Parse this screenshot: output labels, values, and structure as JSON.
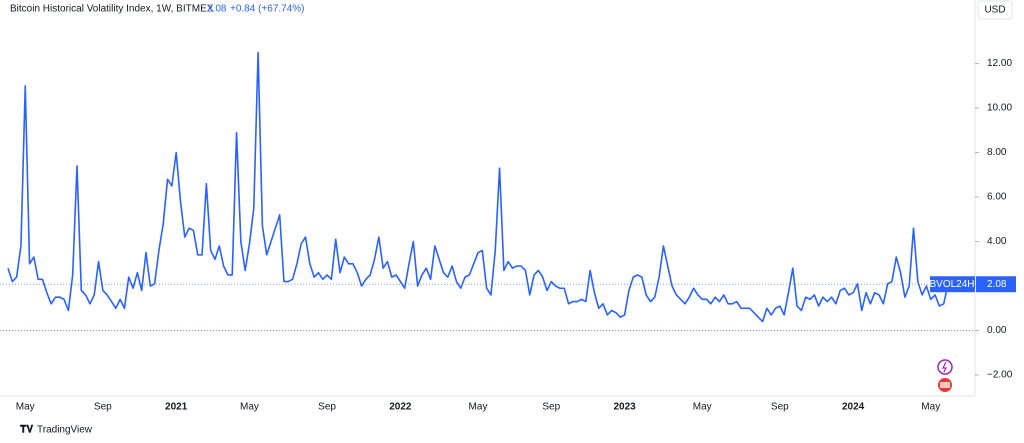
{
  "chart_data": {
    "type": "line",
    "title": "Bitcoin Historical Volatility Index, 1W, BITMEX",
    "change": "+0.84 (+67.74%)",
    "currency": "USD",
    "brand": "TradingView",
    "categories": [
      null,
      null,
      null,
      null,
      "May",
      null,
      null,
      null,
      null,
      null,
      null,
      null,
      null,
      null,
      null,
      null,
      null,
      null,
      null,
      null,
      null,
      null,
      "Sep",
      null,
      null,
      null,
      null,
      null,
      null,
      null,
      null,
      null,
      null,
      null,
      null,
      null,
      null,
      null,
      null,
      "2021",
      null,
      null,
      null,
      null,
      null,
      null,
      null,
      null,
      null,
      null,
      null,
      null,
      null,
      null,
      null,
      null,
      "May",
      null,
      null,
      null,
      null,
      null,
      null,
      null,
      null,
      null,
      null,
      null,
      null,
      null,
      null,
      null,
      null,
      null,
      "Sep",
      null,
      null,
      null,
      null,
      null,
      null,
      null,
      null,
      null,
      null,
      null,
      null,
      null,
      null,
      null,
      null,
      "2022",
      null,
      null,
      null,
      null,
      null,
      null,
      null,
      null,
      null,
      null,
      null,
      null,
      null,
      null,
      null,
      null,
      null,
      "May",
      null,
      null,
      null,
      null,
      null,
      null,
      null,
      null,
      null,
      null,
      null,
      null,
      null,
      null,
      null,
      null,
      "Sep",
      null,
      null,
      null,
      null,
      null,
      null,
      null,
      null,
      null,
      null,
      null,
      null,
      null,
      null,
      null,
      null,
      "2023",
      null,
      null,
      null,
      null,
      null,
      null,
      null,
      null,
      null,
      null,
      null,
      null,
      null,
      null,
      null,
      null,
      null,
      "May",
      null,
      null,
      null,
      null,
      null,
      null,
      null,
      null,
      null,
      null,
      null,
      null,
      null,
      null,
      null,
      null,
      null,
      "Sep",
      null,
      null,
      null,
      null,
      null,
      null,
      null,
      null,
      null,
      null,
      null,
      null,
      null,
      null,
      null,
      null,
      "2024",
      null,
      null,
      null,
      null,
      null,
      null,
      null,
      null,
      null,
      null,
      null,
      null,
      null,
      null,
      null,
      null,
      null,
      "May",
      null,
      null,
      null,
      null
    ],
    "series": [
      {
        "name": "BVOL24H",
        "color": "#2962ff",
        "values": [
          2.8,
          2.2,
          2.4,
          3.8,
          11.0,
          3.0,
          3.3,
          2.3,
          2.3,
          1.7,
          1.2,
          1.5,
          1.5,
          1.4,
          0.9,
          2.5,
          7.4,
          1.8,
          1.6,
          1.2,
          1.6,
          3.1,
          1.8,
          1.6,
          1.3,
          1.0,
          1.4,
          1.0,
          2.4,
          1.9,
          2.6,
          1.8,
          3.5,
          2.0,
          2.1,
          3.6,
          4.8,
          6.8,
          6.5,
          8.0,
          5.8,
          4.2,
          4.6,
          4.5,
          3.4,
          3.4,
          6.6,
          3.6,
          3.2,
          3.8,
          2.9,
          2.5,
          2.5,
          8.9,
          4.0,
          2.7,
          3.9,
          5.5,
          12.5,
          4.7,
          3.4,
          4.0,
          4.6,
          5.2,
          2.2,
          2.2,
          2.3,
          3.0,
          3.9,
          4.2,
          3.0,
          2.4,
          2.6,
          2.3,
          2.5,
          2.3,
          4.1,
          2.6,
          3.3,
          3.0,
          3.0,
          2.6,
          2.0,
          2.3,
          2.5,
          3.2,
          4.2,
          2.8,
          3.1,
          2.4,
          2.5,
          2.2,
          1.9,
          3.0,
          4.0,
          2.0,
          2.5,
          2.8,
          2.3,
          3.8,
          3.2,
          2.6,
          2.4,
          2.9,
          2.2,
          1.9,
          2.4,
          2.5,
          3.0,
          3.5,
          3.6,
          1.9,
          1.6,
          3.6,
          7.3,
          2.7,
          3.1,
          2.8,
          2.9,
          2.9,
          2.7,
          1.6,
          2.5,
          2.7,
          2.4,
          1.8,
          2.2,
          2.0,
          1.9,
          1.9,
          1.2,
          1.3,
          1.3,
          1.4,
          1.3,
          2.7,
          1.7,
          1.0,
          1.2,
          0.7,
          0.9,
          0.8,
          0.6,
          0.7,
          1.8,
          2.4,
          2.5,
          2.4,
          1.6,
          1.3,
          1.5,
          2.4,
          3.8,
          2.9,
          2.0,
          1.6,
          1.4,
          1.2,
          1.5,
          1.9,
          1.6,
          1.4,
          1.4,
          1.2,
          1.5,
          1.3,
          1.6,
          1.2,
          1.2,
          1.3,
          1.0,
          1.0,
          1.0,
          0.8,
          0.6,
          0.4,
          1.0,
          0.7,
          1.0,
          1.1,
          0.7,
          1.7,
          2.8,
          1.1,
          0.9,
          1.5,
          1.4,
          1.6,
          1.1,
          1.5,
          1.3,
          1.5,
          1.2,
          1.8,
          1.9,
          1.6,
          1.7,
          2.1,
          0.9,
          1.7,
          1.2,
          1.7,
          1.6,
          1.2,
          2.1,
          2.2,
          3.3,
          2.6,
          1.5,
          2.0,
          4.6,
          2.2,
          1.6,
          2.0,
          1.4,
          1.6,
          1.1,
          1.2,
          2.08
        ]
      }
    ],
    "ylim": [
      -2.9,
      14.5
    ],
    "yticks": [
      {
        "value": -2,
        "label": "−2.00"
      },
      {
        "value": 0,
        "label": "0.00"
      },
      {
        "value": 2,
        "label": "2.00"
      },
      {
        "value": 4,
        "label": "4.00"
      },
      {
        "value": 6,
        "label": "6.00"
      },
      {
        "value": 8,
        "label": "8.00"
      },
      {
        "value": 10,
        "label": "10.00"
      },
      {
        "value": 12,
        "label": "12.00"
      }
    ]
  }
}
